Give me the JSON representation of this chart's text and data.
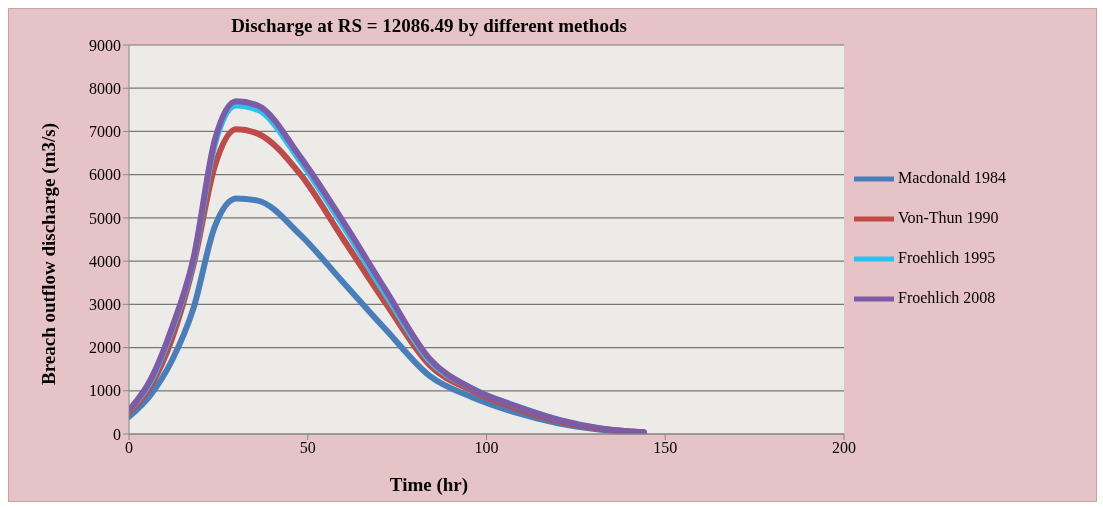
{
  "chart_data": {
    "type": "line",
    "title": "Discharge at RS = 12086.49 by different methods",
    "xlabel": "Time (hr)",
    "ylabel": "Breach outflow discharge  (m3/s)",
    "x": [
      0,
      6,
      12,
      18,
      24,
      30,
      36,
      48,
      60,
      72,
      84,
      96,
      108,
      120,
      132,
      144
    ],
    "series": [
      {
        "name": "Macdonald 1984",
        "color": "#4a7ebb",
        "values": [
          400,
          900,
          1700,
          2900,
          4800,
          5450,
          5400,
          4600,
          3500,
          2400,
          1350,
          850,
          500,
          250,
          100,
          30
        ]
      },
      {
        "name": "Von-Thun 1990",
        "color": "#be4b48",
        "values": [
          500,
          1100,
          2200,
          3900,
          6200,
          7050,
          6950,
          6000,
          4500,
          3000,
          1600,
          1000,
          600,
          300,
          120,
          40
        ]
      },
      {
        "name": "Froehlich 1995",
        "color": "#2cc0ee",
        "values": [
          550,
          1200,
          2400,
          4000,
          6700,
          7600,
          7500,
          6300,
          4800,
          3200,
          1700,
          1050,
          650,
          330,
          null,
          null
        ]
      },
      {
        "name": "Froehlich 2008",
        "color": "#7d5ba6",
        "values": [
          550,
          1250,
          2450,
          4050,
          6800,
          7700,
          7600,
          6400,
          4900,
          3300,
          1750,
          1050,
          650,
          330,
          130,
          40
        ]
      }
    ],
    "xlim": [
      0,
      200
    ],
    "xticks": [
      0,
      50,
      100,
      150,
      200
    ],
    "ylim": [
      0,
      9000
    ],
    "yticks": [
      0,
      1000,
      2000,
      3000,
      4000,
      5000,
      6000,
      7000,
      8000,
      9000
    ],
    "grid": "y",
    "legend": "right",
    "marker": "none",
    "line_style": "solid"
  }
}
